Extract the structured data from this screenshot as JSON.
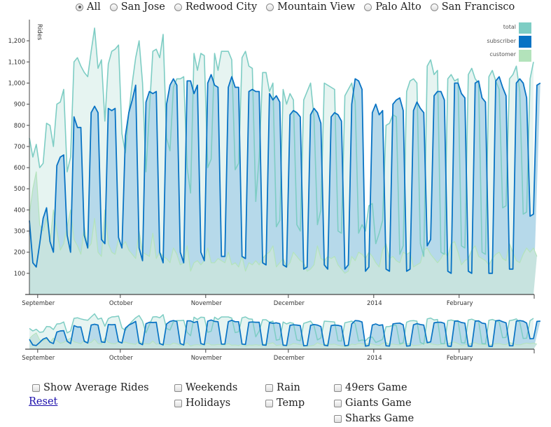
{
  "region_filter": {
    "options": [
      "All",
      "San Jose",
      "Redwood City",
      "Mountain View",
      "Palo Alto",
      "San Francisco"
    ],
    "selected": "All"
  },
  "controls": {
    "show_average": "Show Average Rides",
    "reset": "Reset",
    "weekends": "Weekends",
    "holidays": "Holidays",
    "rain": "Rain",
    "temp": "Temp",
    "niners": "49ers Game",
    "giants": "Giants Game",
    "sharks": "Sharks Game"
  },
  "colors": {
    "total": "#7ecdc4",
    "subscriber": "#0873c4",
    "customer": "#b3e3bb",
    "total_fill": "#e6f4f1",
    "subscriber_fill": "#b6d9ea",
    "customer_fill": "#c7e3df"
  },
  "chart_data": {
    "type": "area",
    "ylabel": "Rides",
    "ylim": [
      0,
      1300
    ],
    "yticks": [
      100,
      200,
      300,
      400,
      500,
      600,
      700,
      800,
      900,
      1000,
      1100,
      1200
    ],
    "ytick_labels": [
      "100",
      "200",
      "300",
      "400",
      "500",
      "600",
      "700",
      "800",
      "900",
      "1,000",
      "1,100",
      "1,200"
    ],
    "x_start": "2013-08-29",
    "x_end": "2014-02-28",
    "xticks": [
      {
        "date": "2013-09-01",
        "label": "September"
      },
      {
        "date": "2013-10-01",
        "label": "October"
      },
      {
        "date": "2013-11-01",
        "label": "November"
      },
      {
        "date": "2013-12-01",
        "label": "December"
      },
      {
        "date": "2014-01-01",
        "label": "2014"
      },
      {
        "date": "2014-02-01",
        "label": "February"
      }
    ],
    "legend": [
      "total",
      "subscriber",
      "customer"
    ],
    "legend_position": "top-right",
    "grid": false,
    "series": [
      {
        "name": "total",
        "values": [
          740,
          650,
          710,
          600,
          620,
          810,
          800,
          700,
          900,
          910,
          970,
          580,
          650,
          1100,
          1120,
          1080,
          1050,
          1030,
          1150,
          1260,
          1070,
          1110,
          820,
          1090,
          1150,
          1160,
          1180,
          760,
          670,
          860,
          1000,
          1120,
          1200,
          1000,
          580,
          870,
          1150,
          1160,
          1120,
          1230,
          740,
          680,
          980,
          1020,
          1020,
          1030,
          600,
          480,
          1140,
          1060,
          1140,
          1130,
          600,
          640,
          1140,
          1060,
          1150,
          1150,
          1150,
          1110,
          590,
          620,
          1120,
          1150,
          1080,
          1070,
          440,
          650,
          1050,
          1050,
          960,
          1000,
          320,
          350,
          970,
          900,
          950,
          920,
          330,
          300,
          920,
          960,
          1000,
          840,
          330,
          400,
          1000,
          990,
          980,
          970,
          300,
          290,
          940,
          970,
          1000,
          910,
          290,
          330,
          300,
          420,
          430,
          240,
          290,
          350,
          800,
          810,
          850,
          840,
          190,
          230,
          960,
          1010,
          1020,
          1000,
          240,
          180,
          1080,
          1110,
          1040,
          1060,
          200,
          190,
          1020,
          1040,
          1010,
          1020,
          230,
          220,
          1040,
          1070,
          1020,
          1000,
          200,
          190,
          1030,
          1060,
          1010,
          970,
          410,
          420,
          1020,
          1040,
          1080,
          960,
          380,
          390,
          1020,
          1100
        ]
      },
      {
        "name": "subscriber",
        "values": [
          350,
          150,
          130,
          240,
          360,
          410,
          250,
          200,
          610,
          650,
          660,
          280,
          200,
          840,
          790,
          790,
          280,
          220,
          860,
          890,
          860,
          260,
          240,
          880,
          870,
          880,
          270,
          220,
          750,
          860,
          920,
          990,
          220,
          160,
          910,
          960,
          950,
          960,
          200,
          150,
          900,
          990,
          1020,
          990,
          200,
          150,
          1010,
          1010,
          950,
          990,
          200,
          160,
          1000,
          1040,
          990,
          980,
          180,
          180,
          980,
          1030,
          980,
          980,
          180,
          170,
          960,
          970,
          960,
          960,
          150,
          140,
          950,
          920,
          940,
          910,
          140,
          130,
          850,
          870,
          860,
          840,
          120,
          130,
          850,
          880,
          860,
          810,
          140,
          120,
          840,
          860,
          850,
          820,
          120,
          140,
          900,
          1020,
          1010,
          970,
          110,
          130,
          860,
          900,
          850,
          870,
          120,
          110,
          900,
          920,
          930,
          870,
          110,
          120,
          870,
          910,
          880,
          860,
          230,
          260,
          940,
          960,
          960,
          920,
          110,
          100,
          1000,
          1000,
          950,
          930,
          110,
          100,
          1000,
          1010,
          930,
          910,
          100,
          100,
          1010,
          1030,
          980,
          940,
          120,
          120,
          1000,
          1020,
          1000,
          930,
          370,
          380,
          990,
          1000
        ]
      },
      {
        "name": "customer",
        "values": [
          380,
          500,
          580,
          330,
          300,
          360,
          250,
          400,
          300,
          210,
          240,
          320,
          400,
          260,
          230,
          190,
          320,
          220,
          240,
          360,
          200,
          180,
          400,
          240,
          200,
          190,
          260,
          230,
          250,
          210,
          190,
          170,
          300,
          200,
          190,
          180,
          290,
          170,
          200,
          180,
          170,
          150,
          220,
          190,
          140,
          150,
          230,
          110,
          150,
          160,
          140,
          160,
          220,
          150,
          150,
          170,
          160,
          150,
          200,
          140,
          150,
          130,
          180,
          110,
          150,
          140,
          160,
          140,
          170,
          190,
          200,
          230,
          130,
          150,
          170,
          130,
          150,
          200,
          180,
          160,
          150,
          110,
          120,
          140,
          230,
          170,
          160,
          180,
          170,
          180,
          140,
          120,
          100,
          110,
          180,
          160,
          200,
          190,
          170,
          200,
          180,
          150,
          130,
          210,
          240,
          170,
          180,
          160,
          150,
          200,
          190,
          200,
          130,
          140,
          150,
          210,
          220,
          190,
          170,
          150,
          170,
          200,
          180,
          240,
          250,
          200,
          140,
          160,
          170,
          210,
          230,
          180,
          170,
          160,
          140,
          170,
          190,
          200,
          170,
          160,
          240,
          200,
          160,
          150,
          190,
          220,
          200,
          220,
          180
        ]
      }
    ]
  }
}
